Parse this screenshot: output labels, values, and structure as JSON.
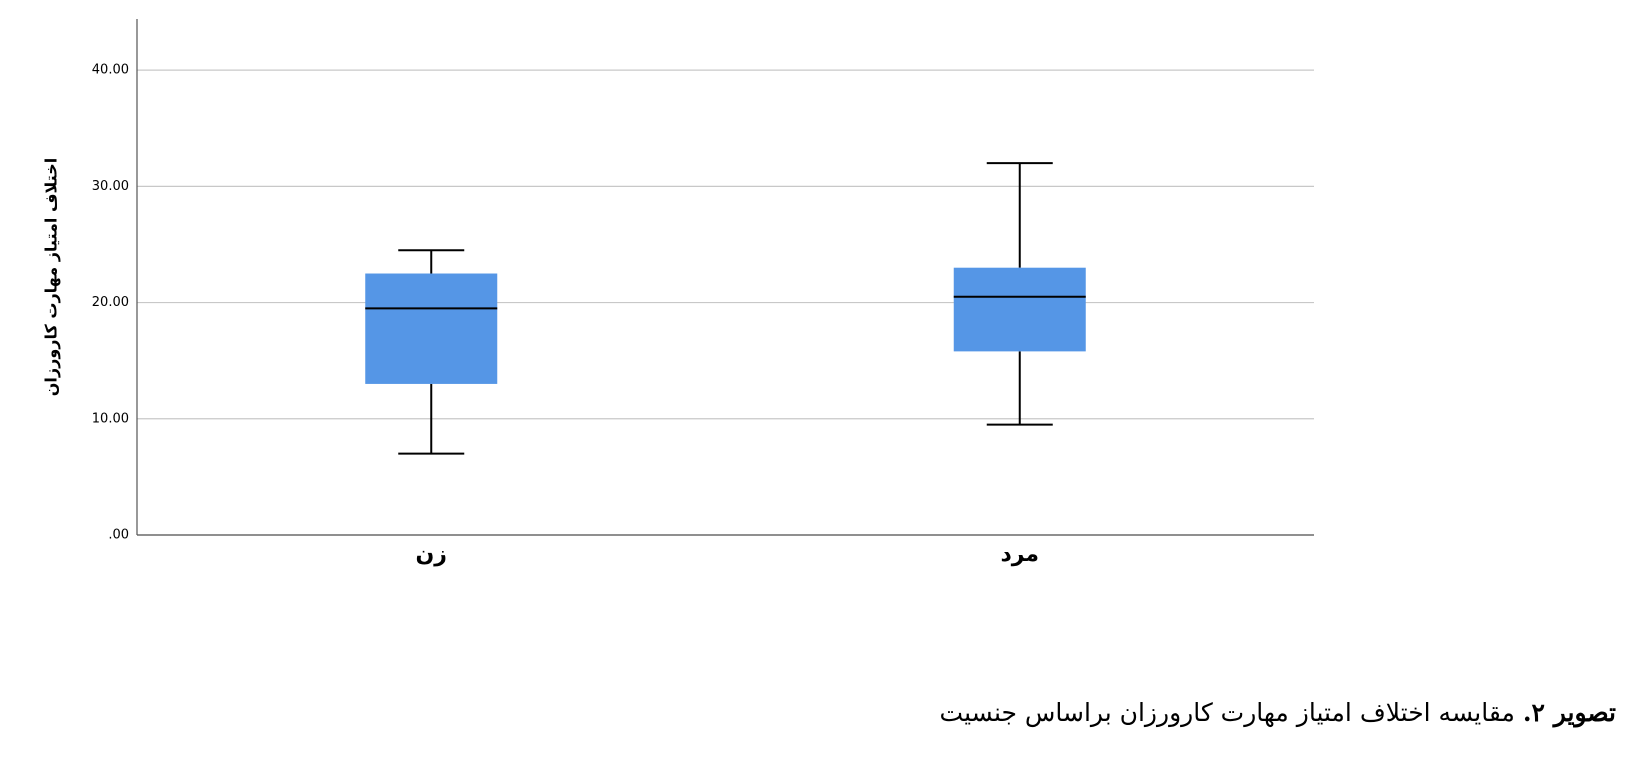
{
  "chart_data": {
    "type": "box",
    "y_label": "اختلاف امتیاز مهارت کارورزان",
    "categories": [
      "زن",
      "مرد"
    ],
    "boxes": [
      {
        "low": 7,
        "q1": 13,
        "median": 19.5,
        "q3": 22.5,
        "high": 24.5
      },
      {
        "low": 9.5,
        "q1": 15.8,
        "median": 20.5,
        "q3": 23,
        "high": 32
      }
    ],
    "color": "#5596e6",
    "ylim": [
      0,
      44.4
    ],
    "yticks": [
      {
        "value": 0,
        "label": ".00"
      },
      {
        "value": 10,
        "label": "10.00"
      },
      {
        "value": 20,
        "label": "20.00"
      },
      {
        "value": 30,
        "label": "30.00"
      },
      {
        "value": 40,
        "label": "40.00"
      }
    ],
    "grid": true
  },
  "caption": {
    "label": "تصویر ۲.",
    "text": "مقایسه اختلاف امتیاز مهارت کارورزان براساس جنسیت"
  }
}
